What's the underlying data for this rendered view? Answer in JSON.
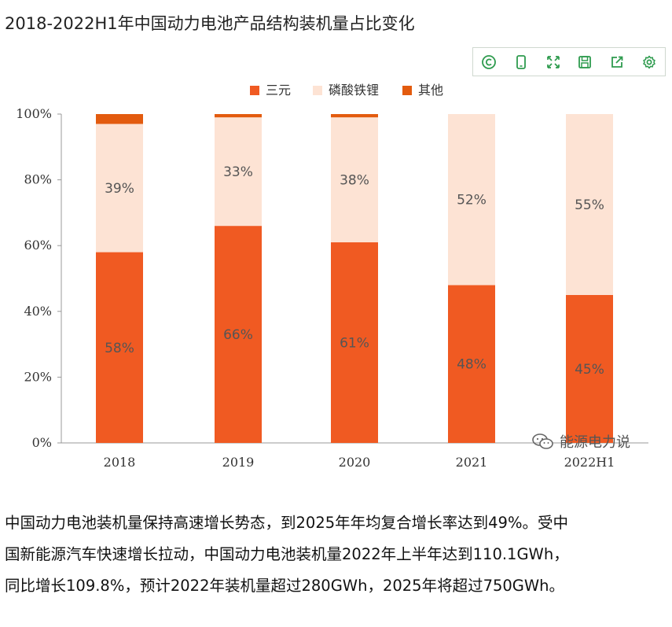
{
  "page": {
    "title": "2018-2022H1年中国动力电池产品结构装机量占比变化",
    "watermark": "能源电力说",
    "paragraph_lines": [
      "中国动力电池装机量保持高速增长势态，到2025年年均复合增长率达到49%。受中",
      "国新能源汽车快速增长拉动，中国动力电池装机量2022年上半年达到110.1GWh，",
      "同比增长109.8%，预计2022年装机量超过280GWh，2025年将超过750GWh。"
    ]
  },
  "toolbar": {
    "icons": [
      "copyright-icon",
      "phone-icon",
      "fullscreen-icon",
      "save-icon",
      "share-icon",
      "settings-icon"
    ]
  },
  "colors": {
    "ternary": "#f05a22",
    "lfp": "#fde3d4",
    "other": "#e35b0e",
    "toolbar_icon": "#2e9b4e"
  },
  "chart_data": {
    "type": "bar",
    "stacked": true,
    "categories": [
      "2018",
      "2019",
      "2020",
      "2021",
      "2022H1"
    ],
    "series": [
      {
        "name": "三元",
        "values": [
          58,
          66,
          61,
          48,
          45
        ],
        "labels": [
          "58%",
          "66%",
          "61%",
          "48%",
          "45%"
        ]
      },
      {
        "name": "磷酸铁锂",
        "values": [
          39,
          33,
          38,
          52,
          55
        ],
        "labels": [
          "39%",
          "33%",
          "38%",
          "52%",
          "55%"
        ]
      },
      {
        "name": "其他",
        "values": [
          3,
          1,
          1,
          0,
          0
        ]
      }
    ],
    "yticks": [
      "0%",
      "20%",
      "40%",
      "60%",
      "80%",
      "100%"
    ],
    "ylim": [
      0,
      100
    ],
    "legend_position": "top-center",
    "grid": false
  }
}
